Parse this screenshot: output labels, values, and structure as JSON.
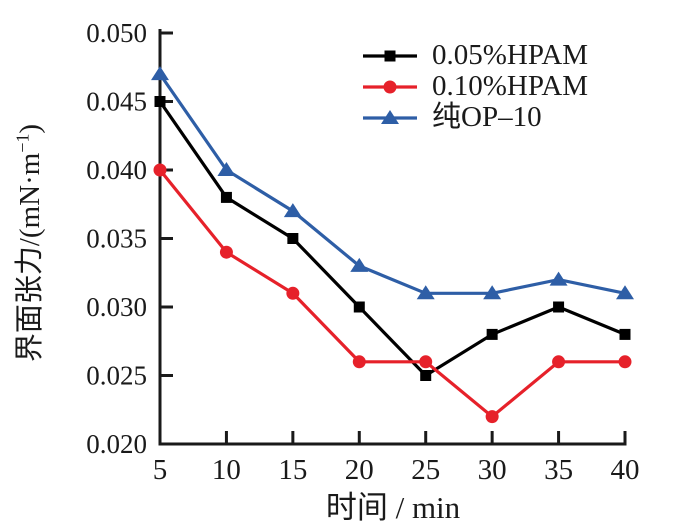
{
  "figure": {
    "background": "#ffffff",
    "axis_color": "#1a1a1a",
    "text_color": "#1a1a1a"
  },
  "chart_data": {
    "type": "line",
    "title": "",
    "xlabel": "时间 / min",
    "ylabel": "界面张力/(mN·m⁻¹)",
    "ylabel_parts": {
      "prefix": "界面张力/(mN·m",
      "sup": "−1",
      "suffix": ")"
    },
    "x": [
      5,
      10,
      15,
      20,
      25,
      30,
      35,
      40
    ],
    "series": [
      {
        "name": "0.05%HPAM",
        "color": "#000000",
        "marker": "square",
        "values": [
          0.045,
          0.038,
          0.035,
          0.03,
          0.025,
          0.028,
          0.03,
          0.028
        ]
      },
      {
        "name": "0.10%HPAM",
        "color": "#e6212a",
        "marker": "circle",
        "values": [
          0.04,
          0.034,
          0.031,
          0.026,
          0.026,
          0.022,
          0.026,
          0.026
        ]
      },
      {
        "name": "纯OP–10",
        "color": "#2e5ea6",
        "marker": "triangle",
        "values": [
          0.047,
          0.04,
          0.037,
          0.033,
          0.031,
          0.031,
          0.032,
          0.031
        ]
      }
    ],
    "xlim": [
      5,
      40
    ],
    "ylim": [
      0.02,
      0.05
    ],
    "xticks": [
      5,
      10,
      15,
      20,
      25,
      30,
      35,
      40
    ],
    "xtick_labels": [
      "5",
      "10",
      "15",
      "20",
      "25",
      "30",
      "35",
      "40"
    ],
    "yticks": [
      0.02,
      0.025,
      0.03,
      0.035,
      0.04,
      0.045,
      0.05
    ],
    "ytick_labels": [
      "0.020",
      "0.025",
      "0.030",
      "0.035",
      "0.040",
      "0.045",
      "0.050"
    ],
    "grid": false,
    "legend_position": "top-right-inside"
  }
}
